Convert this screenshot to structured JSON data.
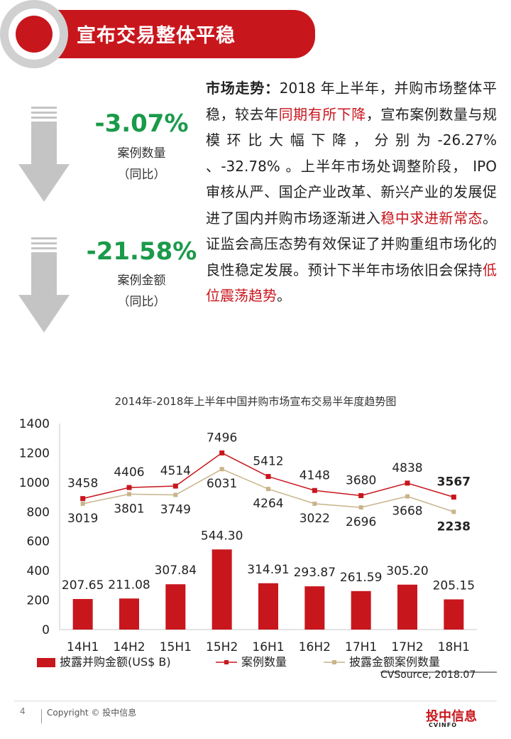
{
  "header": {
    "title": "宣布交易整体平稳"
  },
  "stats": [
    {
      "value": "-3.07%",
      "label": "案例数量",
      "sub": "（同比）"
    },
    {
      "value": "-21.58%",
      "label": "案例金额",
      "sub": "（同比）"
    }
  ],
  "body": {
    "lead": "市场走势：",
    "seg1": "2018 年上半年，并购市场整体平稳，较去年",
    "red1": "同期有所下降",
    "seg2": "，宣布案例数量与规模环比大幅下降，分别为-26.27% 、-32.78% 。上半年市场处调整阶段， IPO 审核从严、国企产业改革、新兴产业的发展促进了国内并购市场逐渐进入",
    "red2": "稳中求进新常态",
    "seg3": "。证监会高压态势有效保证了并购重组市场化的良性稳定发展。预计下半年市场依旧会保持",
    "red3": "低位震荡趋势",
    "seg4": "。"
  },
  "chart_data": {
    "type": "bar",
    "title": "2014年-2018年上半年中国并购市场宣布交易半年度趋势图",
    "categories": [
      "14H1",
      "14H2",
      "15H1",
      "15H2",
      "16H1",
      "16H2",
      "17H1",
      "17H2",
      "18H1"
    ],
    "ylim": [
      0,
      1400
    ],
    "yticks": [
      0,
      200,
      400,
      600,
      800,
      1000,
      1200,
      1400
    ],
    "series": [
      {
        "name": "披露并购金额(US$ B)",
        "type": "bar",
        "color": "#c8161d",
        "values": [
          207.65,
          211.08,
          307.84,
          544.3,
          314.91,
          293.87,
          261.59,
          305.2,
          205.15
        ],
        "labels": [
          "207.65",
          "211.08",
          "307.84",
          "544.30",
          "314.91",
          "293.87",
          "261.59",
          "305.20",
          "205.15"
        ]
      },
      {
        "name": "案例数量",
        "type": "line",
        "color": "#c8161d",
        "values": [
          3458,
          4406,
          4514,
          7496,
          5412,
          4148,
          3680,
          4838,
          3567
        ],
        "plot_values": [
          890,
          965,
          975,
          1200,
          1040,
          945,
          910,
          995,
          900
        ],
        "labels": [
          "3458",
          "4406",
          "4514",
          "7496",
          "5412",
          "4148",
          "3680",
          "4838",
          "3567"
        ]
      },
      {
        "name": "披露金额案例数量",
        "type": "line",
        "color": "#c9b48a",
        "values": [
          3019,
          3801,
          3749,
          6031,
          4264,
          3022,
          2696,
          3668,
          2238
        ],
        "plot_values": [
          855,
          920,
          915,
          1090,
          955,
          855,
          830,
          905,
          800
        ],
        "labels": [
          "3019",
          "3801",
          "3749",
          "6031",
          "4264",
          "3022",
          "2696",
          "3668",
          "2238"
        ]
      }
    ]
  },
  "source": "CVSource, 2018.07",
  "footer": {
    "page": "4",
    "copyright": "Copyright © 投中信息",
    "brand": "投中信息",
    "brand_sub": "CVINFO"
  }
}
